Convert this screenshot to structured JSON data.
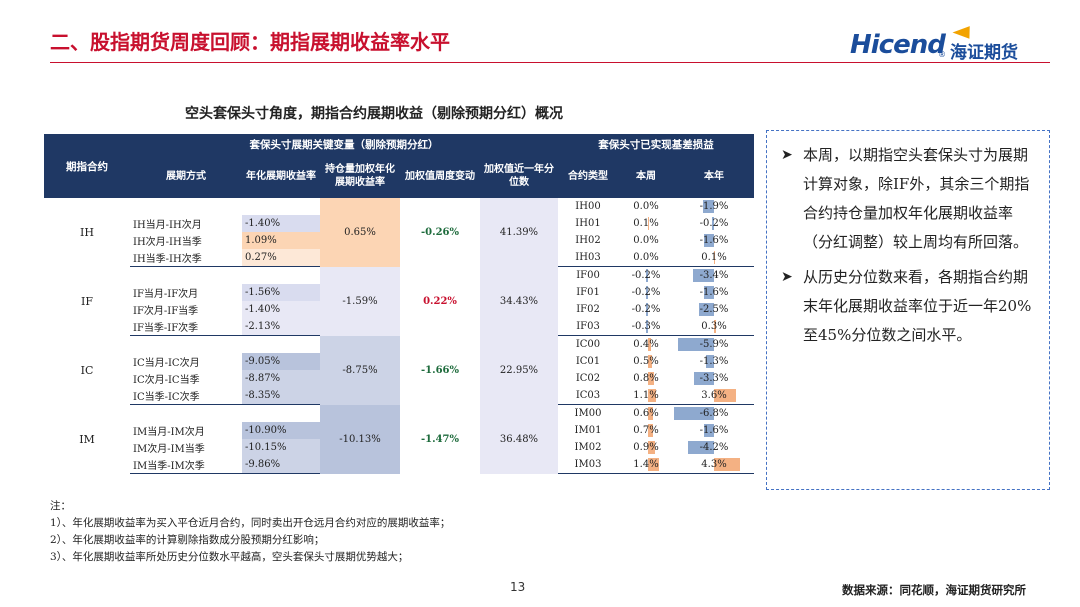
{
  "header": {
    "title": "二、股指期货周度回顾：期指展期收益率水平",
    "logo_en": "Hicend",
    "logo_cn": "海证期货"
  },
  "caption": "空头套保头寸角度，期指合约展期收益（剔除预期分红）概况",
  "table": {
    "head1": [
      "期指合约",
      "套保头寸展期关键变量（剔除预期分红）",
      "套保头寸已实现基差损益"
    ],
    "head2": [
      "展期方式",
      "年化展期收益率",
      "持仓量加权年化展期收益率",
      "加权值周度变动",
      "加权值近一年分位数",
      "合约类型",
      "本周",
      "本年"
    ],
    "groups": [
      {
        "name": "IH",
        "weighted": "0.65%",
        "change": "-0.26%",
        "pct": "41.39%",
        "pairs": [
          {
            "label": "IH当月-IH次月",
            "rate": "-1.40%"
          },
          {
            "label": "IH次月-IH当季",
            "rate": "1.09%"
          },
          {
            "label": "IH当季-IH次季",
            "rate": "0.27%"
          }
        ],
        "contracts": [
          {
            "code": "IH00",
            "week": "0.0%",
            "year": "-1.9%",
            "wf": 0.0,
            "yf": -0.14
          },
          {
            "code": "IH01",
            "week": "0.1%",
            "year": "-0.2%",
            "wf": 0.02,
            "yf": -0.02
          },
          {
            "code": "IH02",
            "week": "0.0%",
            "year": "-1.6%",
            "wf": 0.0,
            "yf": -0.12
          },
          {
            "code": "IH03",
            "week": "0.0%",
            "year": "0.1%",
            "wf": 0.0,
            "yf": 0.01
          }
        ]
      },
      {
        "name": "IF",
        "weighted": "-1.59%",
        "change": "0.22%",
        "pct": "34.43%",
        "pairs": [
          {
            "label": "IF当月-IF次月",
            "rate": "-1.56%"
          },
          {
            "label": "IF次月-IF当季",
            "rate": "-1.40%"
          },
          {
            "label": "IF当季-IF次季",
            "rate": "-2.13%"
          }
        ],
        "contracts": [
          {
            "code": "IF00",
            "week": "-0.2%",
            "year": "-3.4%",
            "wf": -0.03,
            "yf": -0.26
          },
          {
            "code": "IF01",
            "week": "-0.2%",
            "year": "-1.6%",
            "wf": -0.03,
            "yf": -0.12
          },
          {
            "code": "IF02",
            "week": "-0.2%",
            "year": "-2.5%",
            "wf": -0.03,
            "yf": -0.19
          },
          {
            "code": "IF03",
            "week": "-0.3%",
            "year": "0.3%",
            "wf": -0.04,
            "yf": 0.02
          }
        ]
      },
      {
        "name": "IC",
        "weighted": "-8.75%",
        "change": "-1.66%",
        "pct": "22.95%",
        "pairs": [
          {
            "label": "IC当月-IC次月",
            "rate": "-9.05%"
          },
          {
            "label": "IC次月-IC当季",
            "rate": "-8.87%"
          },
          {
            "label": "IC当季-IC次季",
            "rate": "-8.35%"
          }
        ],
        "contracts": [
          {
            "code": "IC00",
            "week": "0.4%",
            "year": "-5.9%",
            "wf": 0.05,
            "yf": -0.45
          },
          {
            "code": "IC01",
            "week": "0.5%",
            "year": "-1.3%",
            "wf": 0.06,
            "yf": -0.1
          },
          {
            "code": "IC02",
            "week": "0.8%",
            "year": "-3.3%",
            "wf": 0.1,
            "yf": -0.25
          },
          {
            "code": "IC03",
            "week": "1.1%",
            "year": "3.6%",
            "wf": 0.14,
            "yf": 0.27
          }
        ]
      },
      {
        "name": "IM",
        "weighted": "-10.13%",
        "change": "-1.47%",
        "pct": "36.48%",
        "pairs": [
          {
            "label": "IM当月-IM次月",
            "rate": "-10.90%"
          },
          {
            "label": "IM次月-IM当季",
            "rate": "-10.15%"
          },
          {
            "label": "IM当季-IM次季",
            "rate": "-9.86%"
          }
        ],
        "contracts": [
          {
            "code": "IM00",
            "week": "0.6%",
            "year": "-6.8%",
            "wf": 0.08,
            "yf": -0.52
          },
          {
            "code": "IM01",
            "week": "0.7%",
            "year": "-1.6%",
            "wf": 0.09,
            "yf": -0.12
          },
          {
            "code": "IM02",
            "week": "0.9%",
            "year": "-4.2%",
            "wf": 0.11,
            "yf": -0.32
          },
          {
            "code": "IM03",
            "week": "1.4%",
            "year": "4.3%",
            "wf": 0.18,
            "yf": 0.33
          }
        ]
      }
    ]
  },
  "commentary": [
    "本周，以期指空头套保头寸为展期计算对象，除IF外，其余三个期指合约持仓量加权年化展期收益率（分红调整）较上周均有所回落。",
    "从历史分位数来看，各期指合约期末年化展期收益率位于近一年20%至45%分位数之间水平。"
  ],
  "notes": [
    "注：",
    "1）、年化展期收益率为买入平仓近月合约，同时卖出开仓远月合约对应的展期收益率；",
    "2）、年化展期收益率的计算剔除指数成分股预期分红影响；",
    "3）、年化展期收益率所处历史分位数水平越高，空头套保头寸展期优势越大；"
  ],
  "footer": {
    "page": "13",
    "source": "数据来源：同花顺，海证期货研究所"
  }
}
